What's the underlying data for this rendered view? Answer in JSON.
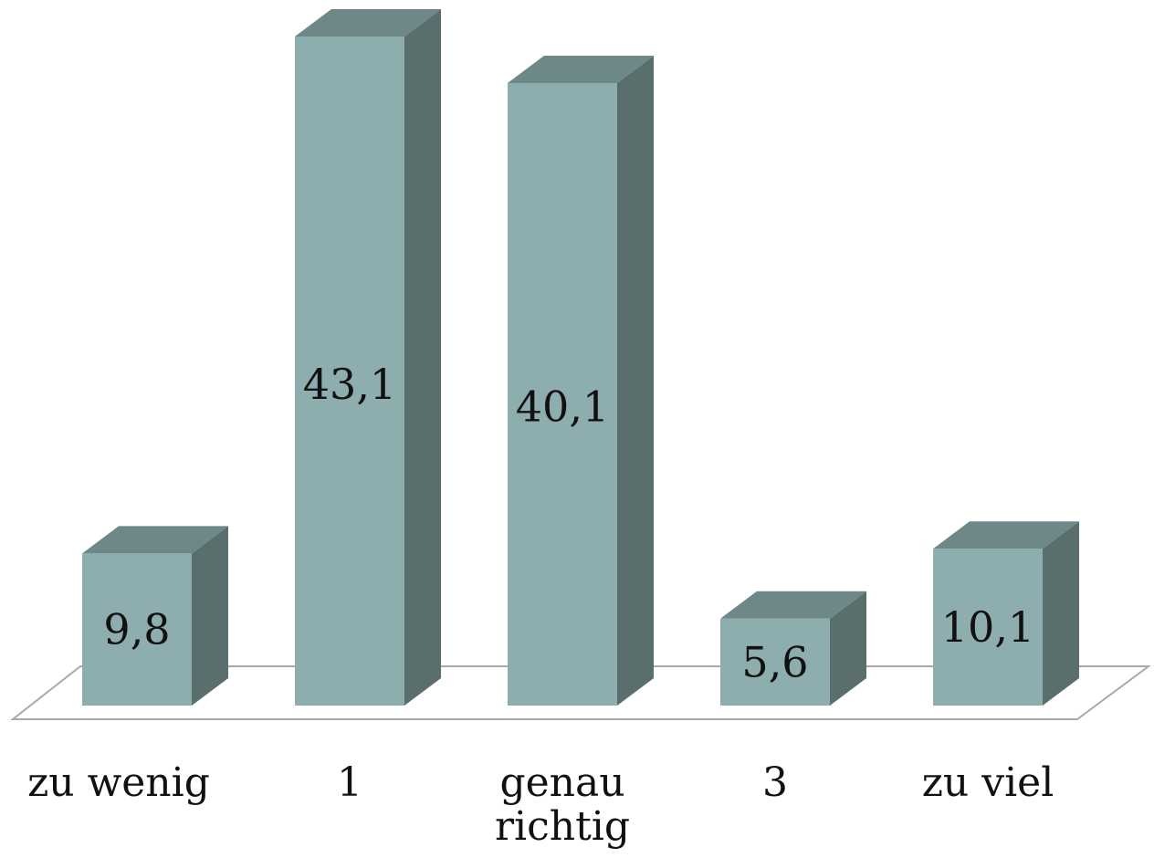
{
  "chart_data": {
    "type": "bar",
    "categories": [
      [
        "zu wenig"
      ],
      [
        "1"
      ],
      [
        "genau",
        "richtig"
      ],
      [
        "3"
      ],
      [
        "zu viel"
      ]
    ],
    "values": [
      9.8,
      43.1,
      40.1,
      5.6,
      10.1
    ],
    "value_labels": [
      "9,8",
      "43,1",
      "40,1",
      "5,6",
      "10,1"
    ],
    "title": "",
    "xlabel": "",
    "ylabel": "",
    "ylim": [
      0,
      43.1
    ],
    "grid": false,
    "legend": "none",
    "style": "3d-column",
    "colors": {
      "front": "#8dadaf",
      "side": "#5a6e6e",
      "top": "#6e8787",
      "floor_stroke": "#a9a9a9"
    }
  }
}
